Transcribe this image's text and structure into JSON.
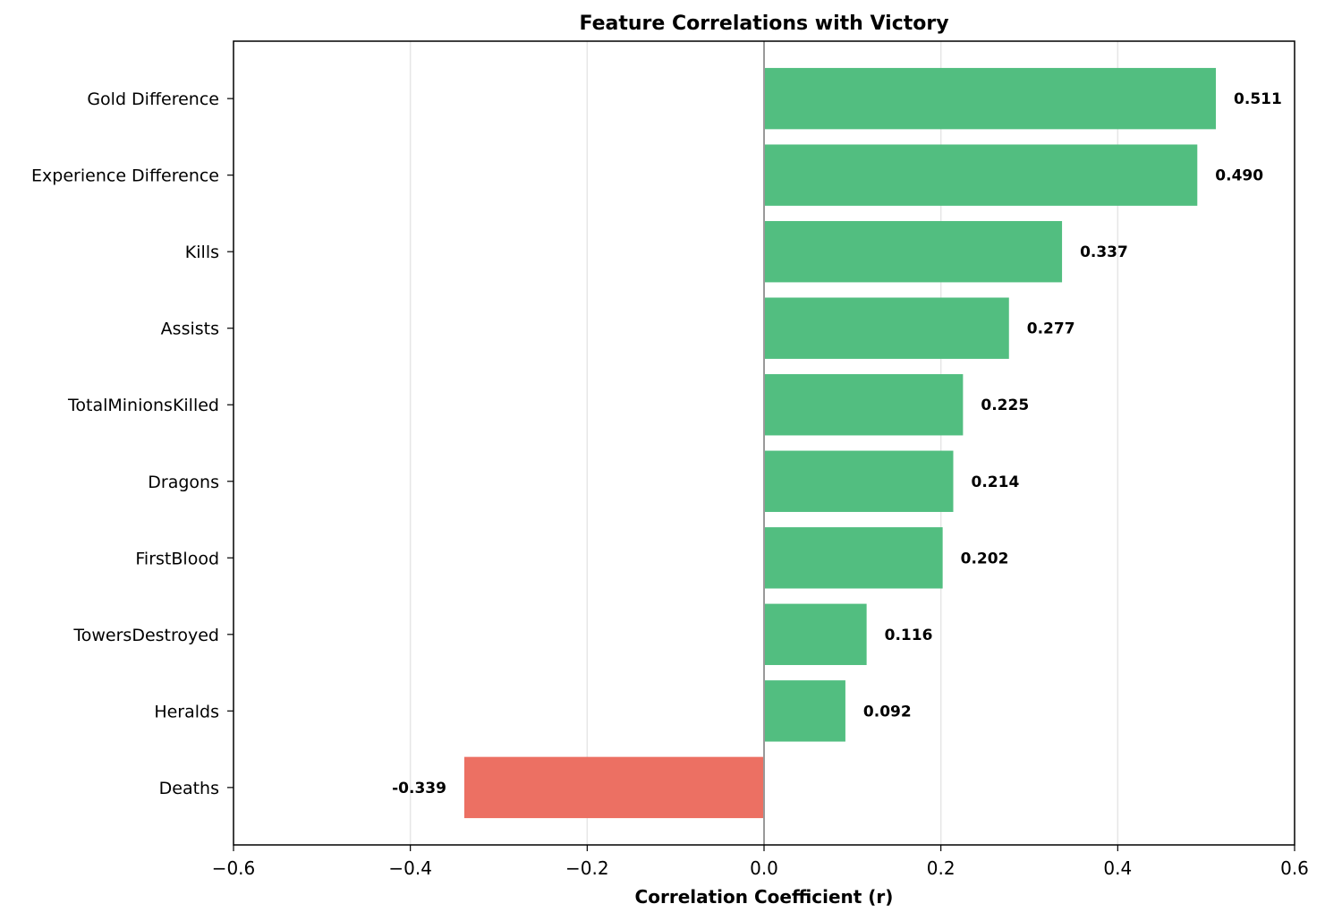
{
  "chart_data": {
    "type": "bar",
    "orientation": "horizontal",
    "title": "Feature Correlations with Victory",
    "xlabel": "Correlation Coefficient (r)",
    "ylabel": "",
    "xlim": [
      -0.6,
      0.6
    ],
    "xticks": [
      -0.6,
      -0.4,
      -0.2,
      0.0,
      0.2,
      0.4,
      0.6
    ],
    "xtick_labels": [
      "−0.6",
      "−0.4",
      "−0.2",
      "0.0",
      "0.2",
      "0.4",
      "0.6"
    ],
    "grid": "vertical",
    "categories": [
      "Gold Difference",
      "Experience Difference",
      "Kills",
      "Assists",
      "TotalMinionsKilled",
      "Dragons",
      "FirstBlood",
      "TowersDestroyed",
      "Heralds",
      "Deaths"
    ],
    "values": [
      0.511,
      0.49,
      0.337,
      0.277,
      0.225,
      0.214,
      0.202,
      0.116,
      0.092,
      -0.339
    ],
    "value_labels": [
      "0.511",
      "0.490",
      "0.337",
      "0.277",
      "0.225",
      "0.214",
      "0.202",
      "0.116",
      "0.092",
      "-0.339"
    ],
    "colors": {
      "positive": "#52be80",
      "negative": "#ec7063",
      "zero_line": "#999999",
      "grid": "#e6e6e6"
    }
  }
}
